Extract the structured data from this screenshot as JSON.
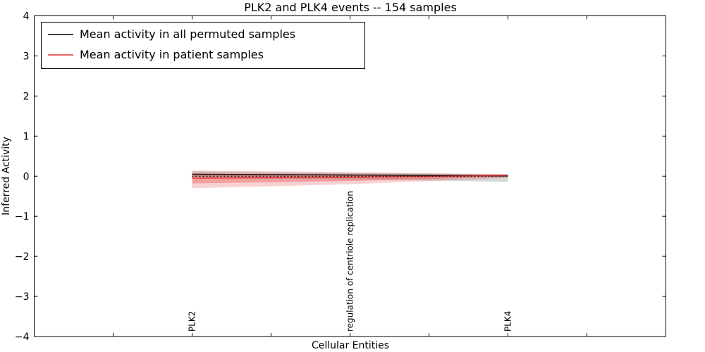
{
  "figure": {
    "title": "PLK2 and PLK4 events -- 154 samples",
    "xlabel": "Cellular Entities",
    "ylabel": "Inferred Activity"
  },
  "chart_data": {
    "type": "line",
    "title": "PLK2 and PLK4 events -- 154 samples",
    "xlabel": "Cellular Entities",
    "ylabel": "Inferred Activity",
    "ylim": [
      -4,
      4
    ],
    "yticks": [
      4,
      3,
      2,
      1,
      0,
      -1,
      -2,
      -3,
      -4
    ],
    "xlim": [
      0,
      4
    ],
    "xticks": [
      0.5,
      1,
      1.5,
      2,
      2.5,
      3,
      3.5
    ],
    "grid": false,
    "legend_position": "upper left",
    "categories": [
      {
        "label": "PLK2",
        "x": 1
      },
      {
        "label": "regulation of centriole replication",
        "x": 2
      },
      {
        "label": "PLK4",
        "x": 3
      }
    ],
    "series": [
      {
        "name": "Mean activity in all permuted samples",
        "color": "#000000",
        "style": "solid",
        "x": [
          1,
          2,
          3
        ],
        "values": [
          0.05,
          0.03,
          0.01
        ]
      },
      {
        "name": "Mean activity in patient samples",
        "color": "#e03030",
        "style": "solid",
        "x": [
          1,
          2,
          3
        ],
        "values": [
          -0.05,
          -0.03,
          0.02
        ]
      },
      {
        "name": "zero-reference",
        "color": "#000000",
        "style": "dashed",
        "x": [
          1,
          2,
          3
        ],
        "values": [
          0,
          0,
          0
        ]
      }
    ],
    "bands": [
      {
        "series": "Mean activity in all permuted samples",
        "color": "#999999",
        "opacity": 0.4,
        "x": [
          1,
          2,
          3
        ],
        "upper": [
          0.12,
          0.08,
          0.05
        ],
        "lower": [
          -0.05,
          -0.08,
          -0.14
        ]
      },
      {
        "series": "Mean activity in patient samples",
        "color": "#e03030",
        "opacity": 0.22,
        "x": [
          1,
          2,
          3
        ],
        "upper": [
          0.14,
          0.1,
          0.05
        ],
        "lower": [
          -0.3,
          -0.2,
          -0.04
        ]
      },
      {
        "series": "Mean activity in patient samples",
        "color": "#e03030",
        "opacity": 0.3,
        "x": [
          1,
          2,
          3
        ],
        "upper": [
          0.06,
          0.04,
          0.03
        ],
        "lower": [
          -0.18,
          -0.12,
          -0.02
        ]
      }
    ]
  }
}
